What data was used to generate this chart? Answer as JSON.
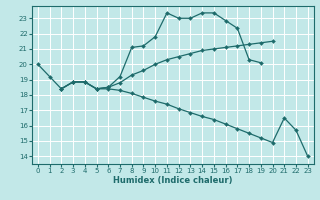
{
  "xlabel": "Humidex (Indice chaleur)",
  "bg_color": "#c2e8e8",
  "grid_color": "#ffffff",
  "line_color": "#1e6b6b",
  "xlim": [
    -0.5,
    23.5
  ],
  "ylim": [
    13.5,
    23.8
  ],
  "yticks": [
    14,
    15,
    16,
    17,
    18,
    19,
    20,
    21,
    22,
    23
  ],
  "xticks": [
    0,
    1,
    2,
    3,
    4,
    5,
    6,
    7,
    8,
    9,
    10,
    11,
    12,
    13,
    14,
    15,
    16,
    17,
    18,
    19,
    20,
    21,
    22,
    23
  ],
  "line1_x": [
    0,
    1,
    2,
    3,
    4,
    5,
    6,
    7,
    8,
    9,
    10,
    11,
    12,
    13,
    14,
    15,
    16,
    17,
    18,
    19
  ],
  "line1_y": [
    20.0,
    19.2,
    18.4,
    18.85,
    18.85,
    18.4,
    18.5,
    19.2,
    21.1,
    21.2,
    21.8,
    23.35,
    23.0,
    23.0,
    23.35,
    23.35,
    22.85,
    22.35,
    20.3,
    20.1
  ],
  "line2_x": [
    2,
    3,
    4,
    5,
    6,
    7,
    8,
    9,
    10,
    11,
    12,
    13,
    14,
    15,
    16,
    17,
    18,
    19,
    20
  ],
  "line2_y": [
    18.4,
    18.85,
    18.85,
    18.4,
    18.5,
    18.8,
    19.3,
    19.6,
    20.0,
    20.3,
    20.5,
    20.7,
    20.9,
    21.0,
    21.1,
    21.2,
    21.3,
    21.4,
    21.5
  ],
  "line3_x": [
    2,
    3,
    4,
    5,
    6,
    7,
    8,
    9,
    10,
    11,
    12,
    13,
    14,
    15,
    16,
    17,
    18,
    19,
    20,
    21,
    22,
    23
  ],
  "line3_y": [
    18.4,
    18.85,
    18.85,
    18.4,
    18.4,
    18.3,
    18.1,
    17.85,
    17.6,
    17.4,
    17.1,
    16.85,
    16.6,
    16.4,
    16.1,
    15.8,
    15.5,
    15.2,
    14.9,
    16.5,
    15.7,
    14.0
  ]
}
